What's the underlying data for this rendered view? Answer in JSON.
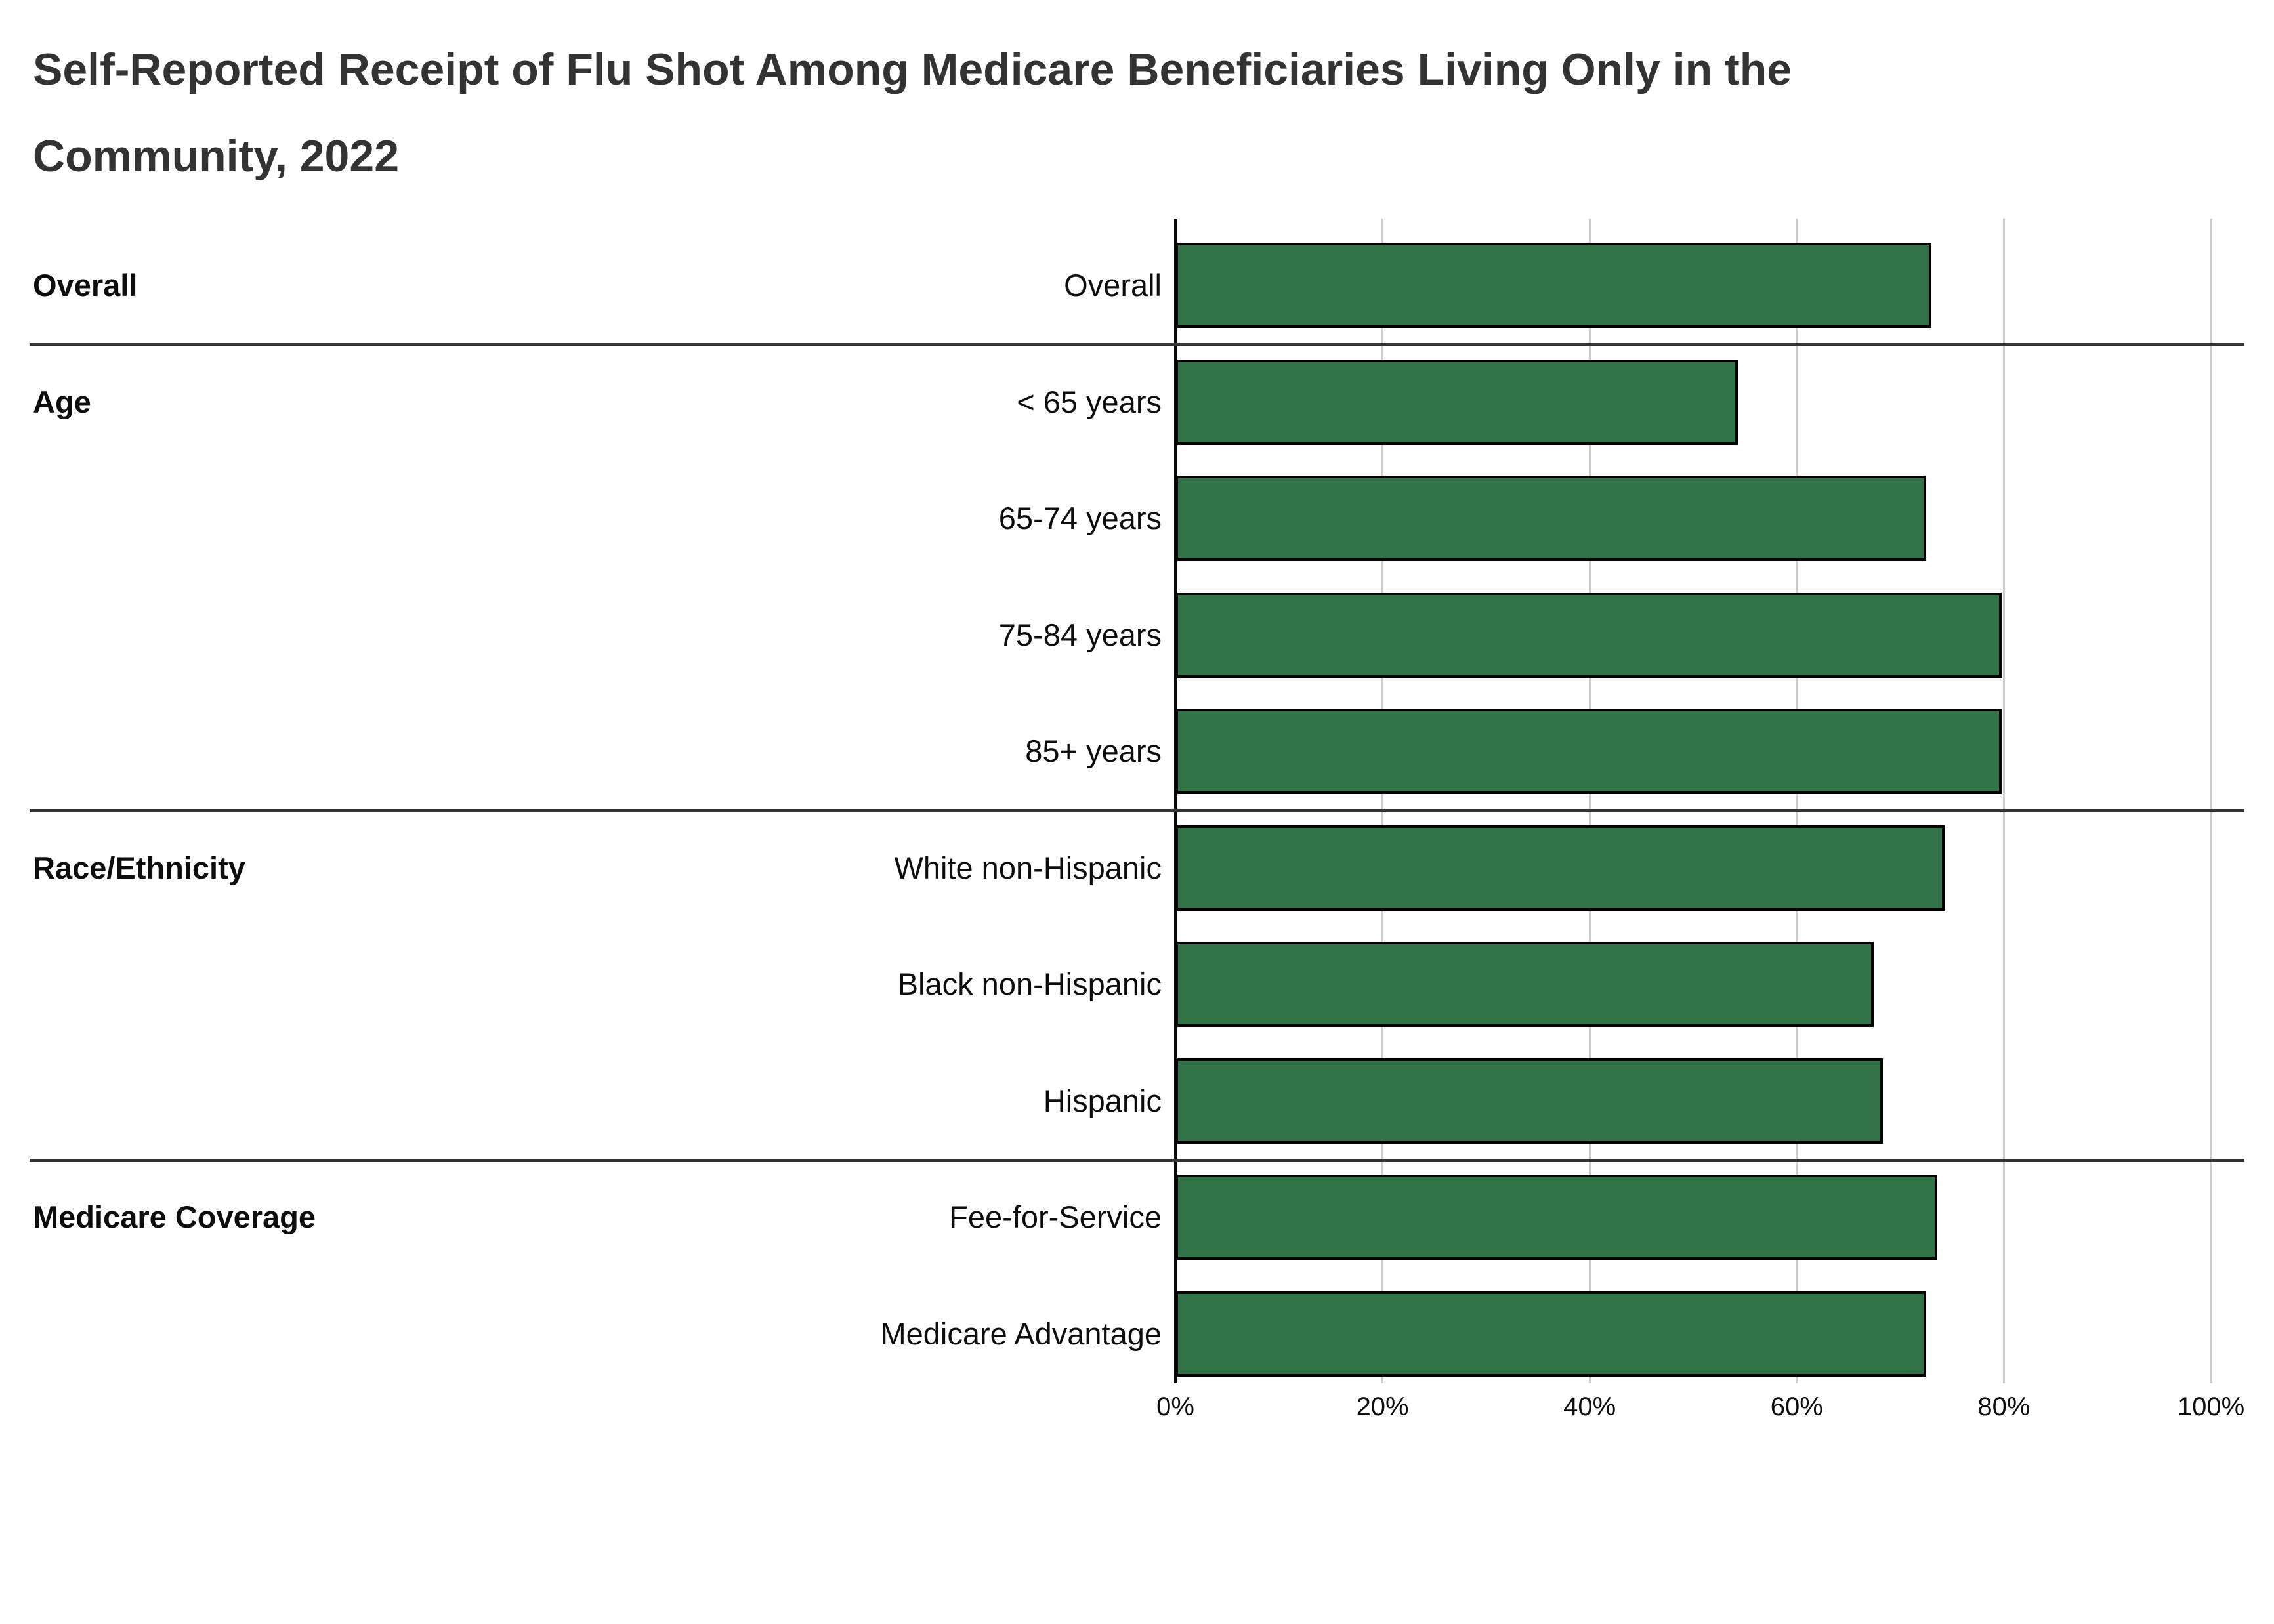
{
  "title": {
    "line1": "Self-Reported Receipt of Flu Shot Among Medicare Beneficiaries Living Only in the",
    "line2": "Community, 2022"
  },
  "chart_data": {
    "type": "bar",
    "orientation": "horizontal",
    "title": "Self-Reported Receipt of Flu Shot Among Medicare Beneficiaries Living Only in the Community, 2022",
    "value_unit": "percent",
    "xlim": [
      0,
      100
    ],
    "x_ticks": [
      "0%",
      "20%",
      "40%",
      "60%",
      "80%",
      "100%"
    ],
    "grid": "vertical-gridlines-at-20pct-steps",
    "legend": "none",
    "bar_color": "#327247",
    "bar_border_color": "#000000",
    "gridline_color": "#cccccc",
    "separator_color": "#333333",
    "groups": [
      {
        "label": "Overall",
        "rows": [
          {
            "label": "Overall",
            "value": 73.0
          }
        ]
      },
      {
        "label": "Age",
        "rows": [
          {
            "label": "< 65 years",
            "value": 54.3
          },
          {
            "label": "65-74 years",
            "value": 72.5
          },
          {
            "label": "75-84 years",
            "value": 79.8
          },
          {
            "label": "85+ years",
            "value": 79.8
          }
        ]
      },
      {
        "label": "Race/Ethnicity",
        "rows": [
          {
            "label": "White non-Hispanic",
            "value": 74.3
          },
          {
            "label": "Black non-Hispanic",
            "value": 67.4
          },
          {
            "label": "Hispanic",
            "value": 68.3
          }
        ]
      },
      {
        "label": "Medicare Coverage",
        "rows": [
          {
            "label": "Fee-for-Service",
            "value": 73.6
          },
          {
            "label": "Medicare Advantage",
            "value": 72.5
          }
        ]
      }
    ]
  }
}
